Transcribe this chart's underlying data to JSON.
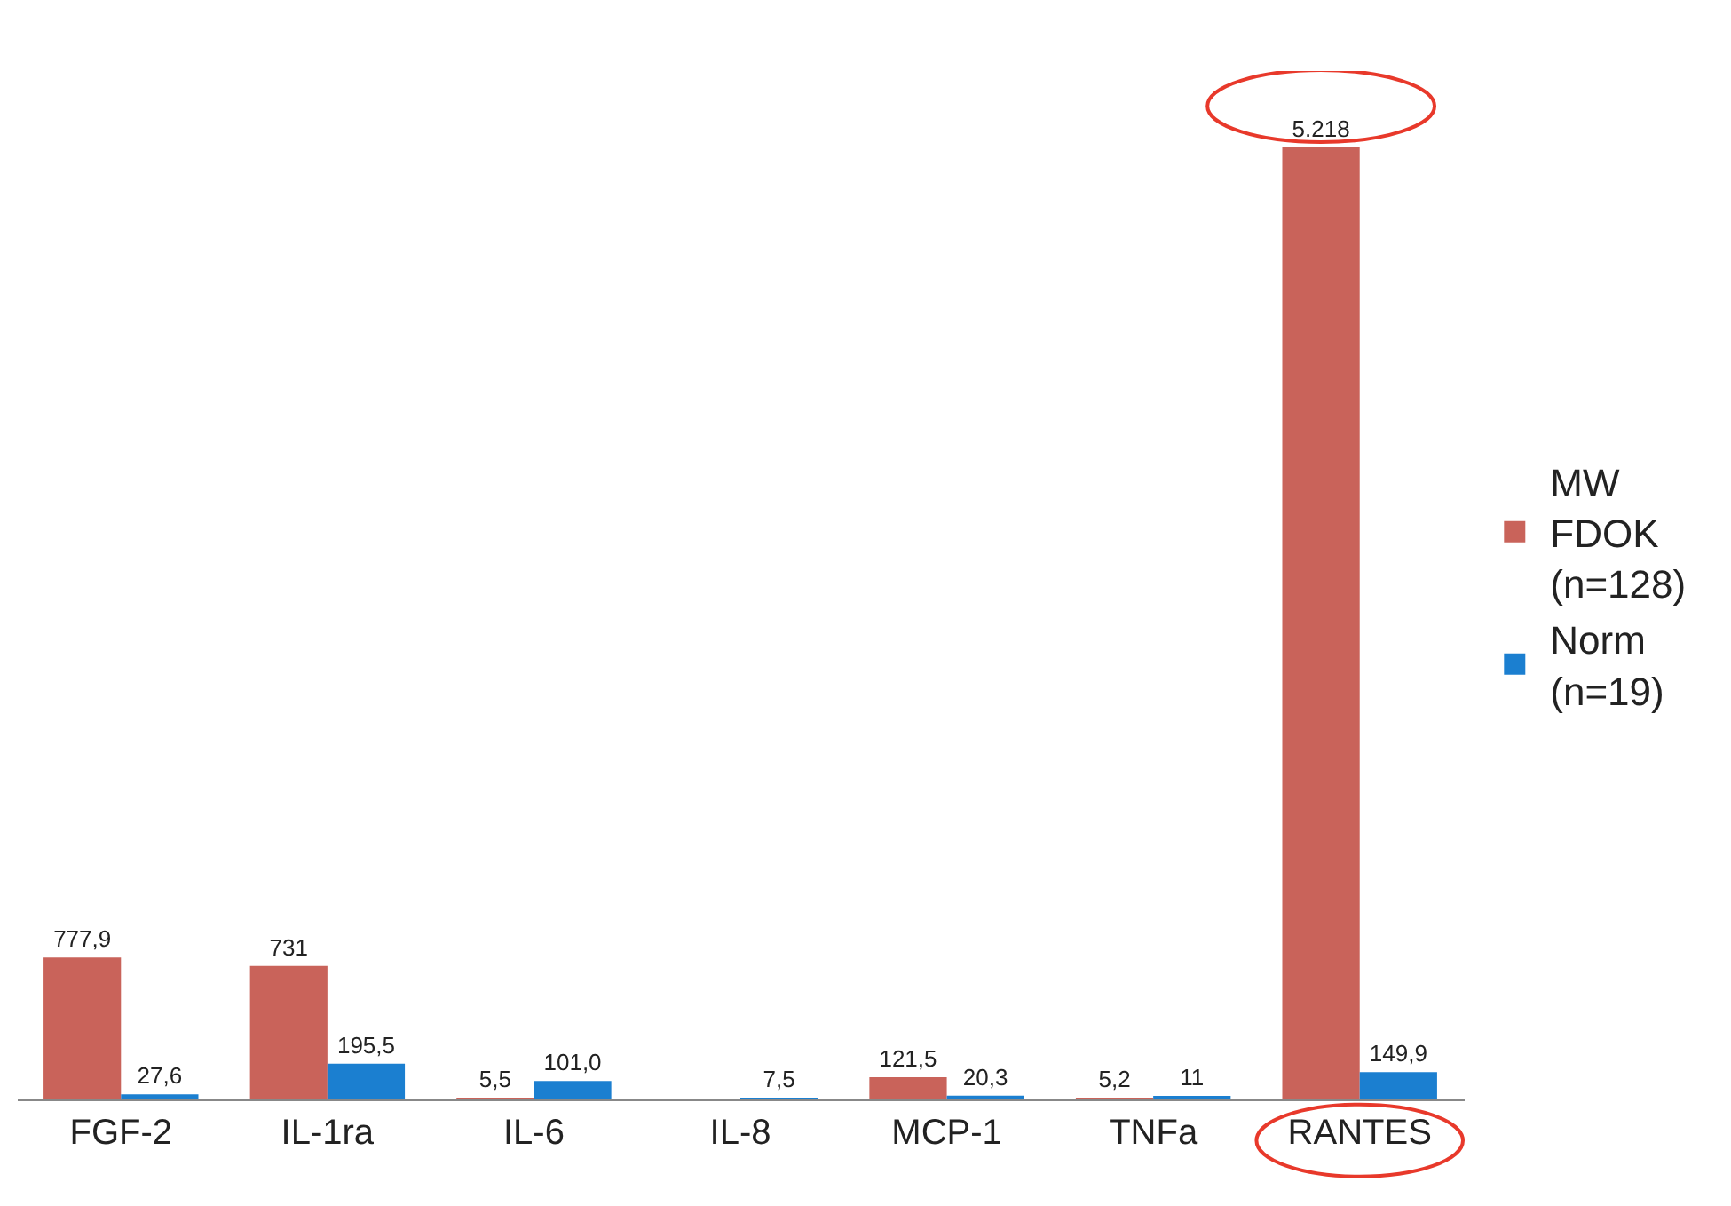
{
  "chart_data": {
    "type": "bar",
    "categories": [
      "FGF-2",
      "IL-1ra",
      "IL-6",
      "IL-8",
      "MCP-1",
      "TNFa",
      "RANTES"
    ],
    "series": [
      {
        "name": "MW\nFDOK\n(n=128)",
        "color": "#c9635a",
        "values": [
          777.9,
          731,
          5.5,
          null,
          121.5,
          5.2,
          5218
        ],
        "value_labels": [
          "777,9",
          "731",
          "5,5",
          null,
          "121,5",
          "5,2",
          "5.218"
        ]
      },
      {
        "name": "Norm\n(n=19)",
        "color": "#1b7fd0",
        "values": [
          27.6,
          195.5,
          101.0,
          7.5,
          20.3,
          11,
          149.9
        ],
        "value_labels": [
          "27,6",
          "195,5",
          "101,0",
          "7,5",
          "20,3",
          "11",
          "149,9"
        ]
      }
    ],
    "tick_labels": "x",
    "legend": "right"
  }
}
